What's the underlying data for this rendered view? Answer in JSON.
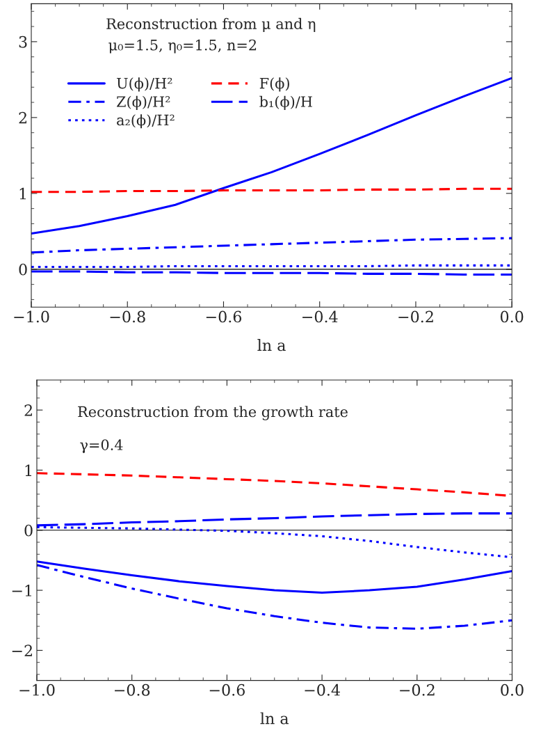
{
  "chart_data": [
    {
      "type": "line",
      "xlabel": "ln a",
      "xlim": [
        -1.0,
        0.0
      ],
      "xticks": [
        {
          "value": -1.0,
          "label": "−1.0"
        },
        {
          "value": -0.8,
          "label": "−0.8"
        },
        {
          "value": -0.6,
          "label": "−0.6"
        },
        {
          "value": -0.4,
          "label": "−0.4"
        },
        {
          "value": -0.2,
          "label": "−0.2"
        },
        {
          "value": 0.0,
          "label": "0.0"
        }
      ],
      "ylim": [
        -0.5,
        3.5
      ],
      "yticks": [
        0,
        1,
        2,
        3
      ],
      "grid": false,
      "legend": "top left",
      "annotations": [
        "Reconstruction from μ and η",
        "μ₀=1.5, η₀=1.5, n=2"
      ],
      "ref_lines": [
        {
          "axis": "y",
          "value": 0,
          "color": "#000000",
          "line_style": "solid"
        }
      ],
      "x": [
        -1.0,
        -0.9,
        -0.8,
        -0.7,
        -0.6,
        -0.5,
        -0.4,
        -0.3,
        -0.2,
        -0.1,
        0.0
      ],
      "series": [
        {
          "name": "U(ϕ)/H²",
          "color": "#0000ff",
          "line_style": "solid",
          "values": [
            0.47,
            0.57,
            0.7,
            0.85,
            1.07,
            1.28,
            1.52,
            1.77,
            2.03,
            2.28,
            2.52
          ]
        },
        {
          "name": "Z(ϕ)/H²",
          "color": "#0000ff",
          "line_style": "dashdot",
          "values": [
            0.22,
            0.25,
            0.27,
            0.29,
            0.31,
            0.33,
            0.35,
            0.37,
            0.39,
            0.4,
            0.41
          ]
        },
        {
          "name": "a₂(ϕ)/H²",
          "color": "#0000ff",
          "line_style": "dotted",
          "values": [
            0.03,
            0.03,
            0.03,
            0.04,
            0.04,
            0.04,
            0.04,
            0.04,
            0.05,
            0.05,
            0.05
          ]
        },
        {
          "name": "F(ϕ)",
          "color": "#ff0000",
          "line_style": "dashed",
          "values": [
            1.02,
            1.02,
            1.03,
            1.03,
            1.04,
            1.04,
            1.04,
            1.05,
            1.05,
            1.06,
            1.06
          ]
        },
        {
          "name": "b₁(ϕ)/H",
          "color": "#0000ff",
          "line_style": "longdash",
          "values": [
            -0.03,
            -0.03,
            -0.04,
            -0.04,
            -0.05,
            -0.05,
            -0.05,
            -0.06,
            -0.06,
            -0.07,
            -0.07
          ]
        }
      ]
    },
    {
      "type": "line",
      "xlabel": "ln a",
      "xlim": [
        -1.0,
        0.0
      ],
      "xticks": [
        {
          "value": -1.0,
          "label": "−1.0"
        },
        {
          "value": -0.8,
          "label": "−0.8"
        },
        {
          "value": -0.6,
          "label": "−0.6"
        },
        {
          "value": -0.4,
          "label": "−0.4"
        },
        {
          "value": -0.2,
          "label": "−0.2"
        },
        {
          "value": 0.0,
          "label": "0.0"
        }
      ],
      "ylim": [
        -2.5,
        2.5
      ],
      "yticks": [
        {
          "value": -2,
          "label": "−2"
        },
        {
          "value": -1,
          "label": "−1"
        },
        0,
        1,
        2
      ],
      "grid": false,
      "annotations": [
        "Reconstruction from the growth rate",
        "γ=0.4"
      ],
      "ref_lines": [
        {
          "axis": "y",
          "value": 0,
          "color": "#000000",
          "line_style": "solid"
        }
      ],
      "x": [
        -1.0,
        -0.9,
        -0.8,
        -0.7,
        -0.6,
        -0.5,
        -0.4,
        -0.3,
        -0.2,
        -0.1,
        0.0
      ],
      "series": [
        {
          "color": "#0000ff",
          "line_style": "solid",
          "values": [
            -0.52,
            -0.64,
            -0.75,
            -0.85,
            -0.93,
            -1.0,
            -1.04,
            -1.0,
            -0.94,
            -0.82,
            -0.68
          ]
        },
        {
          "color": "#0000ff",
          "line_style": "dashdot",
          "values": [
            -0.58,
            -0.78,
            -0.97,
            -1.14,
            -1.3,
            -1.43,
            -1.54,
            -1.62,
            -1.64,
            -1.59,
            -1.5
          ]
        },
        {
          "color": "#0000ff",
          "line_style": "dotted",
          "values": [
            0.05,
            0.04,
            0.03,
            0.01,
            -0.01,
            -0.05,
            -0.1,
            -0.18,
            -0.28,
            -0.37,
            -0.45
          ]
        },
        {
          "color": "#ff0000",
          "line_style": "dashed",
          "values": [
            0.95,
            0.93,
            0.91,
            0.88,
            0.85,
            0.82,
            0.78,
            0.73,
            0.68,
            0.63,
            0.57
          ]
        },
        {
          "color": "#0000ff",
          "line_style": "longdash",
          "values": [
            0.08,
            0.1,
            0.13,
            0.15,
            0.18,
            0.2,
            0.23,
            0.25,
            0.27,
            0.28,
            0.28
          ]
        }
      ]
    }
  ]
}
